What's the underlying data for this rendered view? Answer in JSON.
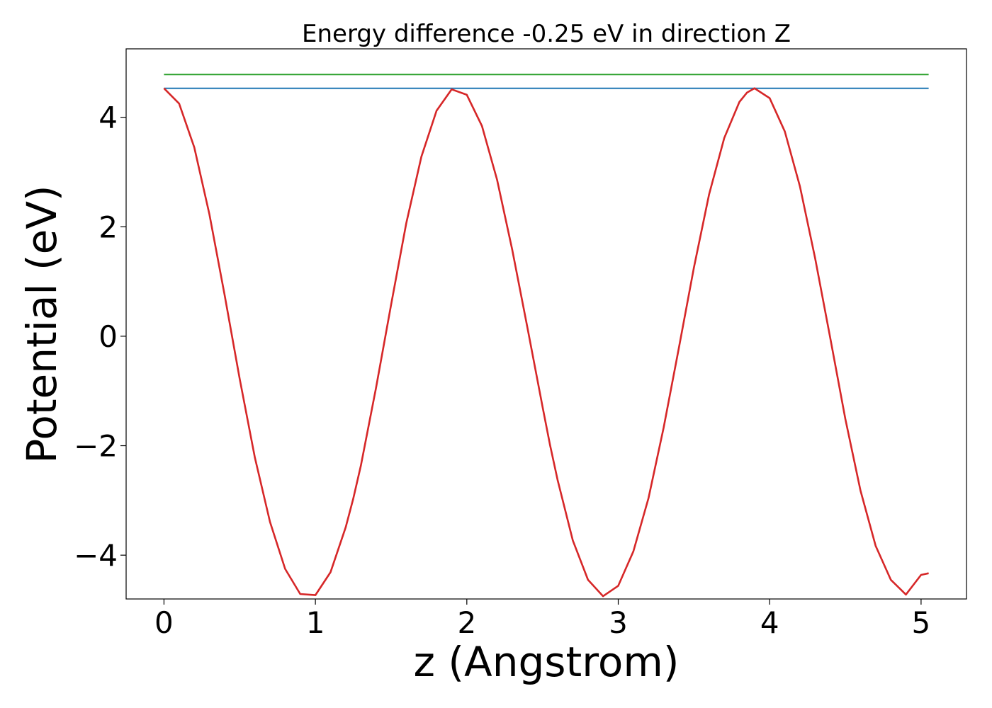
{
  "chart_data": {
    "type": "line",
    "title": "Energy difference -0.25 eV in direction Z",
    "xlabel": "z (Angstrom)",
    "ylabel": "Potential (eV)",
    "xlim": [
      -0.25,
      5.3
    ],
    "ylim": [
      -4.8,
      5.25
    ],
    "x_ticks": [
      0,
      1,
      2,
      3,
      4,
      5
    ],
    "x_tick_labels": [
      "0",
      "1",
      "2",
      "3",
      "4",
      "5"
    ],
    "y_ticks": [
      -4,
      -2,
      0,
      2,
      4
    ],
    "y_tick_labels": [
      "−4",
      "−2",
      "0",
      "2",
      "4"
    ],
    "grid": false,
    "legend": "none",
    "series": [
      {
        "color": "#2ca02c",
        "x": [
          0,
          5.05
        ],
        "y": [
          4.78,
          4.78
        ]
      },
      {
        "color": "#1f77b4",
        "x": [
          0,
          5.05
        ],
        "y": [
          4.53,
          4.53
        ]
      },
      {
        "color": "#d62728",
        "x": [
          0,
          0.1,
          0.2,
          0.3,
          0.4,
          0.5,
          0.6,
          0.7,
          0.8,
          0.9,
          1.0,
          1.1,
          1.2,
          1.25,
          1.3,
          1.4,
          1.5,
          1.6,
          1.7,
          1.8,
          1.9,
          2.0,
          2.1,
          2.2,
          2.3,
          2.4,
          2.5,
          2.55,
          2.6,
          2.7,
          2.8,
          2.9,
          3.0,
          3.1,
          3.2,
          3.3,
          3.4,
          3.5,
          3.6,
          3.7,
          3.8,
          3.85,
          3.9,
          4.0,
          4.1,
          4.2,
          4.3,
          4.4,
          4.5,
          4.6,
          4.7,
          4.8,
          4.9,
          5.0,
          5.05
        ],
        "y": [
          4.53,
          4.25,
          3.45,
          2.23,
          0.76,
          -0.78,
          -2.21,
          -3.39,
          -4.25,
          -4.71,
          -4.73,
          -4.31,
          -3.49,
          -2.97,
          -2.37,
          -0.95,
          0.58,
          2.06,
          3.28,
          4.12,
          4.51,
          4.41,
          3.84,
          2.86,
          1.58,
          0.16,
          -1.29,
          -1.99,
          -2.63,
          -3.73,
          -4.45,
          -4.75,
          -4.56,
          -3.93,
          -2.96,
          -1.67,
          -0.22,
          1.26,
          2.59,
          3.62,
          4.28,
          4.45,
          4.53,
          4.35,
          3.74,
          2.74,
          1.43,
          -0.03,
          -1.51,
          -2.82,
          -3.83,
          -4.45,
          -4.72,
          -4.36,
          -4.33
        ]
      }
    ]
  }
}
